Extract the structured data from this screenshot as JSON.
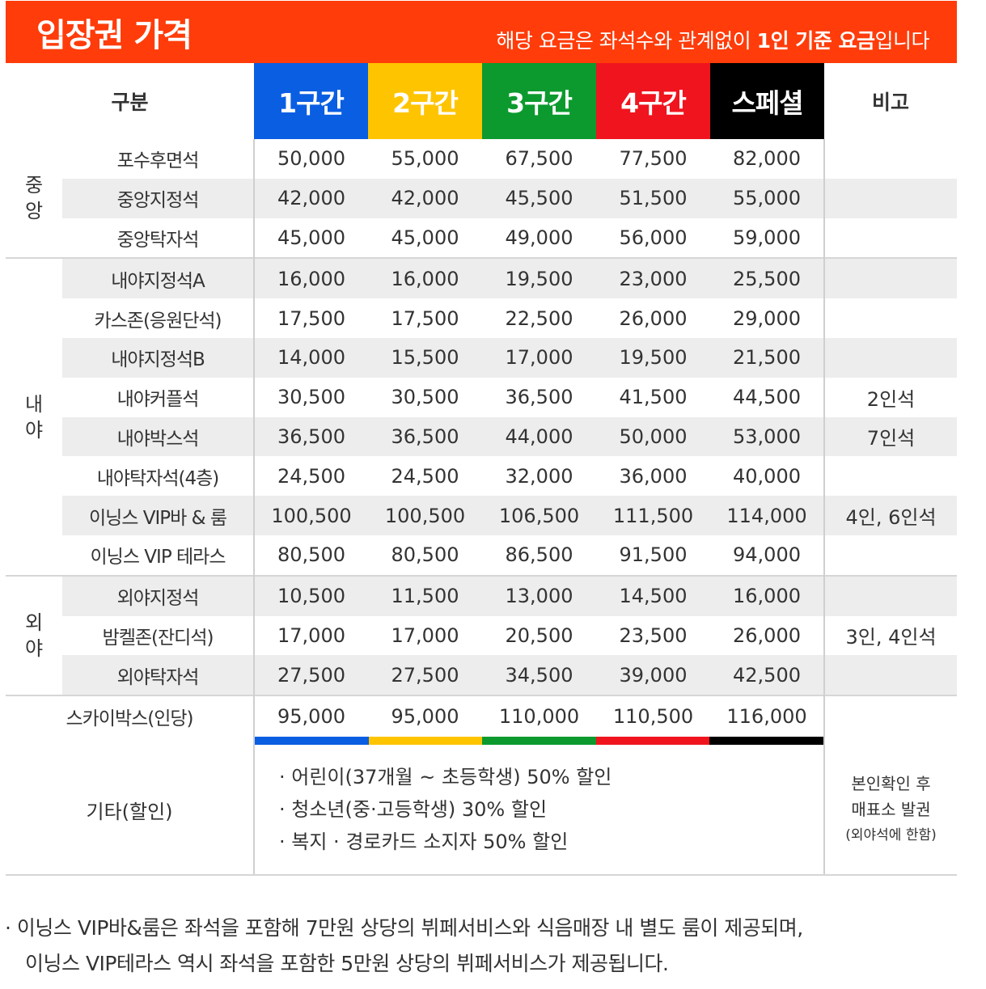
{
  "banner": {
    "title": "입장권 가격",
    "note_prefix": "해당 요금은 좌석수와 관계없이 ",
    "note_bold": "1인 기준 요금",
    "note_suffix": "입니다"
  },
  "header": {
    "gubun": "구분",
    "zones": [
      "1구간",
      "2구간",
      "3구간",
      "4구간",
      "스페셜"
    ],
    "bigo": "비고"
  },
  "colors": {
    "zone1": "#0a5ee2",
    "zone2": "#ffc400",
    "zone3": "#0c9a2e",
    "zone4": "#f0141e",
    "special": "#000000",
    "banner": "#ff3c0a",
    "row_shade": "#ededed"
  },
  "groups": {
    "center": "중\n앙",
    "infield": "내\n야",
    "outfield": "외\n야"
  },
  "rows": [
    {
      "seat": "포수후면석",
      "prices": [
        "50,000",
        "55,000",
        "67,500",
        "77,500",
        "82,000"
      ],
      "remark": ""
    },
    {
      "seat": "중앙지정석",
      "prices": [
        "42,000",
        "42,000",
        "45,500",
        "51,500",
        "55,000"
      ],
      "remark": ""
    },
    {
      "seat": "중앙탁자석",
      "prices": [
        "45,000",
        "45,000",
        "49,000",
        "56,000",
        "59,000"
      ],
      "remark": ""
    },
    {
      "seat": "내야지정석A",
      "prices": [
        "16,000",
        "16,000",
        "19,500",
        "23,000",
        "25,500"
      ],
      "remark": ""
    },
    {
      "seat": "카스존(응원단석)",
      "prices": [
        "17,500",
        "17,500",
        "22,500",
        "26,000",
        "29,000"
      ],
      "remark": ""
    },
    {
      "seat": "내야지정석B",
      "prices": [
        "14,000",
        "15,500",
        "17,000",
        "19,500",
        "21,500"
      ],
      "remark": ""
    },
    {
      "seat": "내야커플석",
      "prices": [
        "30,500",
        "30,500",
        "36,500",
        "41,500",
        "44,500"
      ],
      "remark": "2인석"
    },
    {
      "seat": "내야박스석",
      "prices": [
        "36,500",
        "36,500",
        "44,000",
        "50,000",
        "53,000"
      ],
      "remark": "7인석"
    },
    {
      "seat": "내야탁자석(4층)",
      "prices": [
        "24,500",
        "24,500",
        "32,000",
        "36,000",
        "40,000"
      ],
      "remark": ""
    },
    {
      "seat": "이닝스 VIP바 & 룸",
      "prices": [
        "100,500",
        "100,500",
        "106,500",
        "111,500",
        "114,000"
      ],
      "remark": "4인, 6인석"
    },
    {
      "seat": "이닝스 VIP 테라스",
      "prices": [
        "80,500",
        "80,500",
        "86,500",
        "91,500",
        "94,000"
      ],
      "remark": ""
    },
    {
      "seat": "외야지정석",
      "prices": [
        "10,500",
        "11,500",
        "13,000",
        "14,500",
        "16,000"
      ],
      "remark": ""
    },
    {
      "seat": "밤켈존(잔디석)",
      "prices": [
        "17,000",
        "17,000",
        "20,500",
        "23,500",
        "26,000"
      ],
      "remark": "3인, 4인석"
    },
    {
      "seat": "외야탁자석",
      "prices": [
        "27,500",
        "27,500",
        "34,500",
        "39,000",
        "42,500"
      ],
      "remark": ""
    }
  ],
  "skybox": {
    "seat": "스카이박스(인당)",
    "prices": [
      "95,000",
      "95,000",
      "110,000",
      "110,500",
      "116,000"
    ],
    "remark": ""
  },
  "etc": {
    "label": "기타(할인)",
    "items": [
      "· 어린이(37개월 ~ 초등학생) 50% 할인",
      "· 청소년(중·고등학생) 30% 할인",
      "· 복지 · 경로카드 소지자 50% 할인"
    ],
    "right_line1": "본인확인 후",
    "right_line2": "매표소 발권",
    "right_line3": "(외야석에 한함)"
  },
  "footnote": {
    "line1": "· 이닝스 VIP바&룸은 좌석을 포함해 7만원 상당의 뷔페서비스와 식음매장 내 별도 룸이 제공되며,",
    "line2": "이닝스 VIP테라스 역시 좌석을 포함한 5만원 상당의 뷔페서비스가 제공됩니다."
  }
}
